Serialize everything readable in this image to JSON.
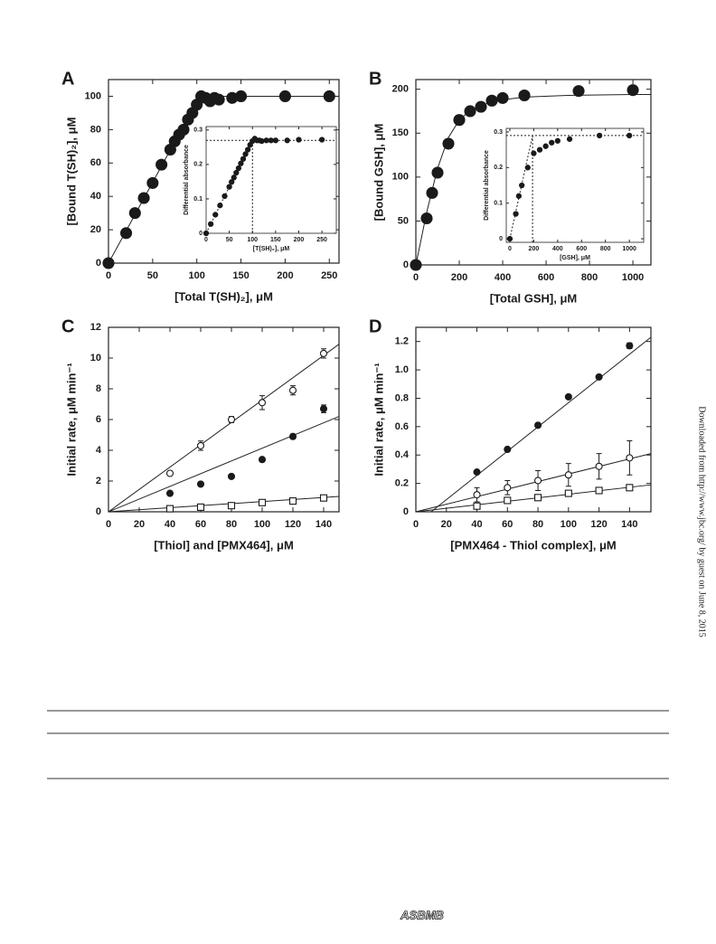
{
  "chart_data": [
    {
      "type": "scatter",
      "panel": "A",
      "xlabel": "[Total T(SH)₂], μM",
      "ylabel": "[Bound T(SH)₂], μM",
      "xlim": [
        0,
        261
      ],
      "ylim": [
        0,
        110
      ],
      "xticks": [
        0,
        50,
        100,
        150,
        200,
        250
      ],
      "yticks": [
        0,
        20,
        40,
        60,
        80,
        100
      ],
      "series": [
        {
          "marker": "filled-circle",
          "color": "#1a1a1a",
          "x": [
            0,
            20,
            30,
            40,
            50,
            60,
            70,
            75,
            80,
            85,
            90,
            95,
            100,
            105,
            110,
            115,
            120,
            125,
            140,
            150,
            200,
            250
          ],
          "values": [
            0,
            18,
            30,
            39,
            48,
            59,
            68,
            73,
            77,
            80,
            86,
            90,
            95,
            100,
            99,
            97,
            99,
            98,
            99,
            100,
            100,
            100
          ]
        }
      ],
      "fits": [
        {
          "dashed": false,
          "x": [
            0,
            95,
            105,
            115,
            130,
            261
          ],
          "values": [
            0,
            92,
            98,
            99.5,
            100,
            100
          ]
        }
      ]
    },
    {
      "type": "scatter",
      "xlabel": "[T(SH)₂], μM",
      "ylabel": "Differential absorbance",
      "xlim": [
        0,
        281
      ],
      "ylim": [
        0,
        0.31
      ],
      "xticks": [
        0,
        50,
        100,
        150,
        200,
        250
      ],
      "yticks": [
        0,
        0.1,
        0.2,
        0.3
      ],
      "series": [
        {
          "marker": "filled-circle",
          "color": "#1a1a1a",
          "x": [
            0,
            10,
            20,
            30,
            40,
            50,
            55,
            60,
            65,
            70,
            75,
            80,
            85,
            90,
            95,
            100,
            105,
            110,
            115,
            120,
            130,
            140,
            150,
            175,
            200,
            250
          ],
          "values": [
            0,
            0.027,
            0.054,
            0.081,
            0.108,
            0.135,
            0.149,
            0.162,
            0.176,
            0.189,
            0.203,
            0.216,
            0.23,
            0.243,
            0.257,
            0.268,
            0.275,
            0.27,
            0.27,
            0.268,
            0.27,
            0.27,
            0.27,
            0.27,
            0.272,
            0.272
          ]
        }
      ],
      "fits": [
        {
          "dashed": true,
          "x": [
            0,
            100
          ],
          "values": [
            0,
            0.27
          ]
        }
      ],
      "guides": {
        "x": 100,
        "y": 0.27
      }
    },
    {
      "type": "scatter",
      "panel": "B",
      "xlabel": "[Total GSH], μM",
      "ylabel": "[Bound GSH], μM",
      "xlim": [
        0,
        1083
      ],
      "ylim": [
        0,
        211
      ],
      "xticks": [
        0,
        200,
        400,
        600,
        800,
        1000
      ],
      "yticks": [
        0,
        50,
        100,
        150,
        200
      ],
      "series": [
        {
          "marker": "filled-circle",
          "color": "#1a1a1a",
          "x": [
            0,
            50,
            75,
            100,
            150,
            200,
            250,
            300,
            350,
            400,
            500,
            750,
            1000
          ],
          "values": [
            0,
            53,
            82,
            105,
            138,
            165,
            175,
            180,
            187,
            190,
            193,
            198,
            199
          ]
        }
      ],
      "fits": [
        {
          "dashed": false,
          "x": [
            0,
            50,
            100,
            150,
            200,
            250,
            300,
            400,
            500,
            700,
            1000,
            1083
          ],
          "values": [
            0,
            60,
            110,
            145,
            165,
            176,
            182,
            188,
            191,
            193,
            194,
            194
          ]
        }
      ]
    },
    {
      "type": "scatter",
      "xlabel": "[GSH], μM",
      "ylabel": "Differential absorbance",
      "xlim": [
        -30,
        1120
      ],
      "ylim": [
        -0.01,
        0.31
      ],
      "xticks": [
        0,
        200,
        400,
        600,
        800,
        1000
      ],
      "yticks": [
        0,
        0.1,
        0.2,
        0.3
      ],
      "series": [
        {
          "marker": "filled-circle",
          "color": "#1a1a1a",
          "x": [
            0,
            50,
            75,
            100,
            150,
            200,
            250,
            300,
            350,
            400,
            500,
            750,
            1000
          ],
          "values": [
            0,
            0.07,
            0.12,
            0.15,
            0.2,
            0.24,
            0.25,
            0.26,
            0.27,
            0.275,
            0.28,
            0.29,
            0.29
          ]
        }
      ],
      "fits": [
        {
          "dashed": true,
          "x": [
            0,
            190
          ],
          "values": [
            0,
            0.29
          ]
        }
      ],
      "guides": {
        "x": 190,
        "y": 0.29
      }
    },
    {
      "type": "scatter",
      "panel": "C",
      "xlabel": "[Thiol] and [PMX464], μM",
      "ylabel": "Initial rate,  μM min⁻¹",
      "xlim": [
        0,
        150
      ],
      "ylim": [
        0,
        12
      ],
      "xticks": [
        0,
        20,
        40,
        60,
        80,
        100,
        120,
        140
      ],
      "yticks": [
        0,
        2,
        4,
        6,
        8,
        10,
        12
      ],
      "series": [
        {
          "marker": "open-circle",
          "color": "#1a1a1a",
          "x": [
            40,
            60,
            80,
            100,
            120,
            140
          ],
          "values": [
            2.5,
            4.3,
            6.0,
            7.1,
            7.9,
            10.3
          ],
          "errors": [
            0.15,
            0.3,
            0.2,
            0.45,
            0.3,
            0.3
          ]
        },
        {
          "marker": "filled-circle",
          "color": "#1a1a1a",
          "x": [
            40,
            60,
            80,
            100,
            120,
            140
          ],
          "values": [
            1.2,
            1.8,
            2.3,
            3.4,
            4.9,
            6.7
          ],
          "errors": [
            0.05,
            0.05,
            0.1,
            0.1,
            0.15,
            0.25
          ]
        },
        {
          "marker": "open-square",
          "color": "#1a1a1a",
          "x": [
            40,
            60,
            80,
            100,
            120,
            140
          ],
          "values": [
            0.2,
            0.3,
            0.4,
            0.6,
            0.7,
            0.9
          ],
          "errors": [
            0.05,
            0.05,
            0.05,
            0.05,
            0.05,
            0.05
          ]
        }
      ],
      "fits": [
        {
          "dashed": false,
          "x": [
            0,
            150
          ],
          "values": [
            0,
            10.9
          ]
        },
        {
          "dashed": false,
          "x": [
            0,
            150
          ],
          "values": [
            0,
            6.2
          ]
        },
        {
          "dashed": false,
          "x": [
            0,
            150
          ],
          "values": [
            0,
            1.0
          ]
        }
      ]
    },
    {
      "type": "scatter",
      "panel": "D",
      "xlabel": "[PMX464 - Thiol complex], μM",
      "ylabel": "Initial rate,  μM min⁻¹",
      "xlim": [
        0,
        154
      ],
      "ylim": [
        0,
        1.3
      ],
      "xticks": [
        0,
        20,
        40,
        60,
        80,
        100,
        120,
        140
      ],
      "yticks": [
        0,
        0.2,
        0.4,
        0.6,
        0.8,
        {
          "value": 1,
          "label": "1.0"
        },
        1.2
      ],
      "series": [
        {
          "marker": "filled-circle",
          "color": "#1a1a1a",
          "x": [
            40,
            60,
            80,
            100,
            120,
            140
          ],
          "values": [
            0.28,
            0.44,
            0.61,
            0.81,
            0.95,
            1.17
          ],
          "errors": [
            0.01,
            0.01,
            0.01,
            0.01,
            0.01,
            0.02
          ]
        },
        {
          "marker": "open-circle",
          "color": "#1a1a1a",
          "x": [
            40,
            60,
            80,
            100,
            120,
            140
          ],
          "values": [
            0.12,
            0.17,
            0.22,
            0.26,
            0.32,
            0.38
          ],
          "errors": [
            0.05,
            0.05,
            0.07,
            0.08,
            0.09,
            0.12
          ]
        },
        {
          "marker": "open-square",
          "color": "#1a1a1a",
          "x": [
            40,
            60,
            80,
            100,
            120,
            140
          ],
          "values": [
            0.04,
            0.08,
            0.1,
            0.13,
            0.15,
            0.17
          ],
          "errors": [
            0.01,
            0.01,
            0.01,
            0.01,
            0.01,
            0.01
          ]
        }
      ],
      "fits": [
        {
          "dashed": false,
          "x": [
            10,
            154
          ],
          "values": [
            0,
            1.23
          ]
        },
        {
          "dashed": false,
          "x": [
            0,
            154
          ],
          "values": [
            0,
            0.41
          ]
        },
        {
          "dashed": false,
          "x": [
            0,
            154
          ],
          "values": [
            0,
            0.19
          ]
        }
      ]
    }
  ],
  "page": {
    "side_note": "Downloaded from http://www.jbc.org/ by guest on June 8, 2015",
    "logo": "ASBMB"
  }
}
